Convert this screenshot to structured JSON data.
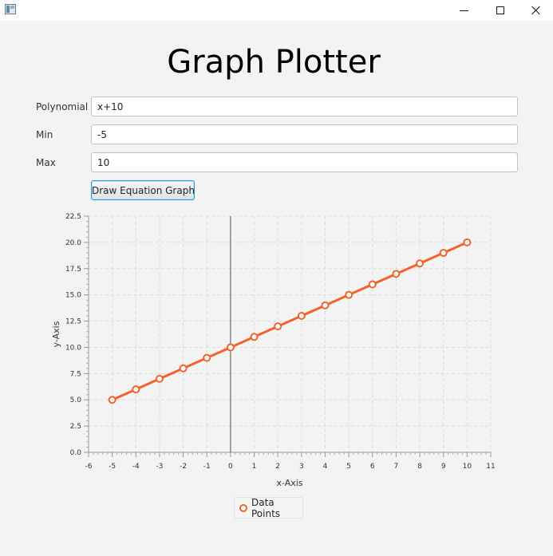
{
  "window": {
    "icon": "app-window-icon",
    "controls": {
      "minimize_icon": "minimize-icon",
      "maximize_icon": "maximize-icon",
      "close_icon": "close-icon"
    }
  },
  "page": {
    "title": "Graph Plotter"
  },
  "form": {
    "polynomial": {
      "label": "Polynomial",
      "value": "x+10"
    },
    "min": {
      "label": "Min",
      "value": "-5"
    },
    "max": {
      "label": "Max",
      "value": "10"
    },
    "draw_button": "Draw Equation Graph"
  },
  "chart_data": {
    "type": "line",
    "title": "",
    "xlabel": "x-Axis",
    "ylabel": "y-Axis",
    "xlim": [
      -6,
      11
    ],
    "ylim": [
      0,
      22.5
    ],
    "x_ticks": [
      -6,
      -5,
      -4,
      -3,
      -2,
      -1,
      0,
      1,
      2,
      3,
      4,
      5,
      6,
      7,
      8,
      9,
      10,
      11
    ],
    "y_ticks": [
      "0.0",
      "2.5",
      "5.0",
      "7.5",
      "10.0",
      "12.5",
      "15.0",
      "17.5",
      "20.0",
      "22.5"
    ],
    "grid": true,
    "legend": "bottom-center",
    "series": [
      {
        "name": "Data Points",
        "color": "#f3622d",
        "x": [
          -5,
          -4,
          -3,
          -2,
          -1,
          0,
          1,
          2,
          3,
          4,
          5,
          6,
          7,
          8,
          9,
          10
        ],
        "y": [
          5,
          6,
          7,
          8,
          9,
          10,
          11,
          12,
          13,
          14,
          15,
          16,
          17,
          18,
          19,
          20
        ]
      }
    ]
  }
}
